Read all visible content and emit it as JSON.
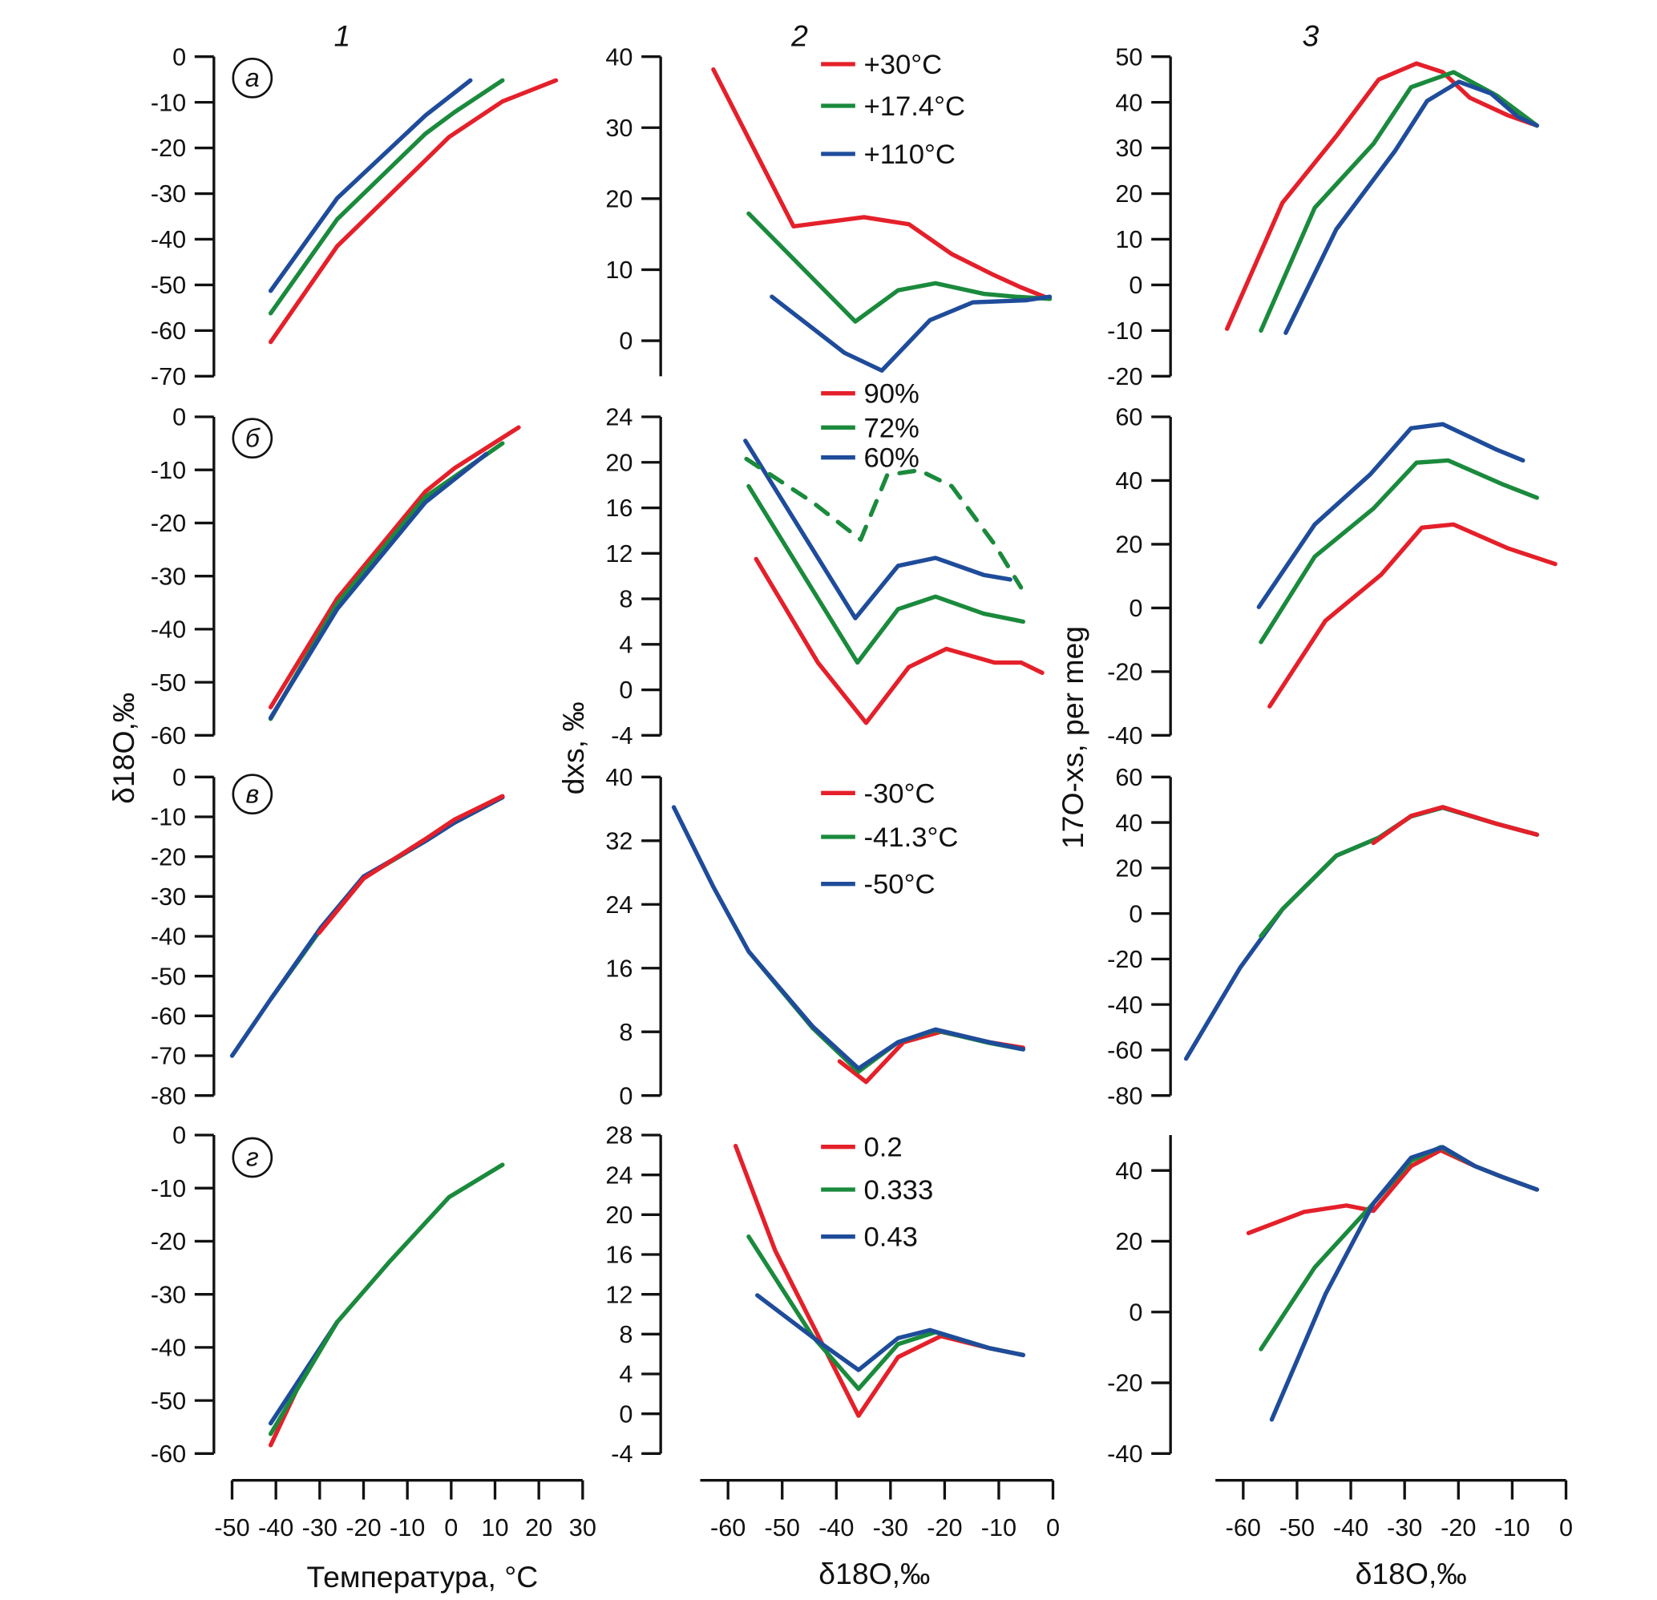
{
  "colors": {
    "red": "#e4202a",
    "green": "#1a8a3c",
    "blue": "#1f4c9a"
  },
  "headers": [
    "1",
    "2",
    "3"
  ],
  "panel_letters": [
    "а",
    "б",
    "в",
    "г"
  ],
  "labels": {
    "col1_y": "δ18O,‰",
    "col2_y": "dxs, ‰",
    "col3_y": "17O-xs, per meg",
    "col1_x": "Температура, °C",
    "col2_x": "δ18O,‰",
    "col3_x": "δ18O,‰"
  },
  "chart_data": [
    {
      "type": "line",
      "row": "а",
      "col": 1,
      "ylim": [
        -70,
        0
      ],
      "yticks": [
        0,
        -10,
        -20,
        -30,
        -40,
        -50,
        -60,
        -70
      ],
      "series": [
        {
          "color": "#e4202a",
          "x": [
            -41.2,
            -26,
            -5.9,
            -0.5,
            11.7,
            23.9
          ],
          "y": [
            -62.5,
            -41.5,
            -22.7,
            -17.6,
            -9.8,
            -5.2
          ]
        },
        {
          "color": "#1a8a3c",
          "x": [
            -41.2,
            -26,
            -5.9,
            0.7,
            11.7
          ],
          "y": [
            -56.2,
            -35.6,
            -16.9,
            -12.2,
            -5.2
          ]
        },
        {
          "color": "#1f4c9a",
          "x": [
            -41.2,
            -26,
            -5.9,
            4.4
          ],
          "y": [
            -51.3,
            -31,
            -12.9,
            -5.2
          ]
        }
      ]
    },
    {
      "type": "line",
      "row": "а",
      "col": 2,
      "ylim": [
        -5,
        40
      ],
      "yticks": [
        40,
        30,
        20,
        10,
        0
      ],
      "series": [
        {
          "name": "+30°C",
          "color": "#e4202a",
          "x": [
            -62.7,
            -47.9,
            -34.9,
            -26.6,
            -18.7,
            -10.8,
            -5.9,
            -0.6
          ],
          "y": [
            38.2,
            16.1,
            17.4,
            16.4,
            12.2,
            9.2,
            7.5,
            5.9
          ]
        },
        {
          "name": "+17.4°C",
          "color": "#1a8a3c",
          "x": [
            -56.2,
            -36.5,
            -28.6,
            -21.7,
            -12.8,
            -6.9,
            -0.6
          ],
          "y": [
            17.9,
            2.7,
            7.1,
            8.1,
            6.6,
            6.2,
            5.9
          ]
        },
        {
          "name": "+110°C",
          "color": "#1f4c9a",
          "x": [
            -51.9,
            -38.5,
            -31.6,
            -22.7,
            -14.8,
            -4.9,
            -0.6
          ],
          "y": [
            6.2,
            -1.7,
            -4.2,
            2.9,
            5.4,
            5.7,
            6.2
          ]
        }
      ]
    },
    {
      "type": "line",
      "row": "а",
      "col": 3,
      "ylim": [
        -20,
        50
      ],
      "yticks": [
        50,
        40,
        30,
        20,
        10,
        0,
        -10,
        -20
      ],
      "series": [
        {
          "color": "#e4202a",
          "x": [
            -63,
            -52.7,
            -42.7,
            -34.8,
            -27.8,
            -22.9,
            -17.9,
            -10.9,
            -5.4
          ],
          "y": [
            -9.6,
            18,
            32.6,
            45,
            48.5,
            46.6,
            41,
            37.2,
            34.9
          ]
        },
        {
          "color": "#1a8a3c",
          "x": [
            -56.7,
            -46.7,
            -35.8,
            -28.8,
            -20.9,
            -12.9,
            -5.4
          ],
          "y": [
            -10,
            16.9,
            30.9,
            43.3,
            46.6,
            41.5,
            34.9
          ]
        },
        {
          "color": "#1f4c9a",
          "x": [
            -52.1,
            -42.7,
            -31.8,
            -25.8,
            -19.9,
            -13.9,
            -8.9,
            -5.4
          ],
          "y": [
            -10.5,
            12.2,
            29.3,
            40.3,
            44.5,
            41.9,
            36.8,
            34.9
          ]
        }
      ]
    },
    {
      "type": "line",
      "row": "б",
      "col": 1,
      "ylim": [
        -60,
        0
      ],
      "yticks": [
        0,
        -10,
        -20,
        -30,
        -40,
        -50,
        -60
      ],
      "series": [
        {
          "color": "#e4202a",
          "x": [
            -41.2,
            -26,
            -5.9,
            0.7,
            15.4
          ],
          "y": [
            -54.7,
            -34.2,
            -14.1,
            -9.7,
            -2
          ]
        },
        {
          "color": "#1a8a3c",
          "x": [
            -41.2,
            -26,
            -5.9,
            11.7
          ],
          "y": [
            -56.9,
            -35.2,
            -15.1,
            -5
          ]
        },
        {
          "color": "#1f4c9a",
          "x": [
            -41.2,
            -26,
            -5.9,
            8
          ],
          "y": [
            -56.7,
            -36.2,
            -16.1,
            -7
          ]
        }
      ]
    },
    {
      "type": "line",
      "row": "б",
      "col": 2,
      "ylim": [
        -4,
        24
      ],
      "yticks": [
        24,
        20,
        16,
        12,
        8,
        4,
        0,
        -4
      ],
      "series": [
        {
          "name": "90%",
          "color": "#e4202a",
          "x": [
            -54.8,
            -43.4,
            -34.5,
            -26.6,
            -19.7,
            -10.8,
            -5.9,
            -2
          ],
          "y": [
            11.5,
            2.4,
            -2.9,
            2,
            3.6,
            2.4,
            2.4,
            1.5
          ]
        },
        {
          "name": "72%",
          "color": "#1a8a3c",
          "x": [
            -56.2,
            -36.1,
            -28.6,
            -21.7,
            -12.8,
            -5.5
          ],
          "y": [
            17.9,
            2.4,
            7.1,
            8.2,
            6.7,
            6
          ]
        },
        {
          "name": "60%",
          "color": "#1f4c9a",
          "x": [
            -56.8,
            -36.5,
            -28.6,
            -21.7,
            -12.8,
            -7.9
          ],
          "y": [
            21.9,
            6.3,
            10.9,
            11.6,
            10.1,
            9.7
          ]
        },
        {
          "color": "#1a8a3c",
          "dashed": true,
          "x": [
            -56.6,
            -44.4,
            -35.5,
            -30.6,
            -24.7,
            -18.7,
            -10.8,
            -5.9
          ],
          "y": [
            20.3,
            16.5,
            13.2,
            18.9,
            19.3,
            17.9,
            12.8,
            9
          ]
        }
      ]
    },
    {
      "type": "line",
      "row": "б",
      "col": 3,
      "ylim": [
        -40,
        60
      ],
      "yticks": [
        60,
        40,
        20,
        0,
        -20,
        -40
      ],
      "series": [
        {
          "color": "#e4202a",
          "x": [
            -55.1,
            -44.7,
            -34.4,
            -26.8,
            -20.9,
            -10.9,
            -2
          ],
          "y": [
            -30.9,
            -4,
            10.4,
            25.2,
            26.2,
            18.8,
            13.8
          ]
        },
        {
          "color": "#1a8a3c",
          "x": [
            -56.7,
            -46.7,
            -35.8,
            -27.8,
            -21.9,
            -11.9,
            -5.4
          ],
          "y": [
            -10.7,
            16.1,
            31.2,
            45.6,
            46.3,
            38.9,
            34.6
          ]
        },
        {
          "color": "#1f4c9a",
          "x": [
            -57.1,
            -46.7,
            -36.4,
            -28.8,
            -22.9,
            -12.9,
            -8
          ],
          "y": [
            0.3,
            26.2,
            41.9,
            56.4,
            57.7,
            49.7,
            46.3
          ]
        }
      ]
    },
    {
      "type": "line",
      "row": "в",
      "col": 1,
      "ylim": [
        -80,
        0
      ],
      "yticks": [
        0,
        -10,
        -20,
        -30,
        -40,
        -50,
        -60,
        -70,
        -80
      ],
      "series": [
        {
          "color": "#1a8a3c",
          "x": [
            -41.2,
            -29.8,
            -20,
            -5.9,
            0.7,
            11.7
          ],
          "y": [
            -55.8,
            -38.4,
            -25.3,
            -16.1,
            -11.5,
            -5.1
          ]
        },
        {
          "color": "#1f4c9a",
          "x": [
            -50,
            -41.2,
            -29.8,
            -20,
            -5.9,
            0.7,
            11.7
          ],
          "y": [
            -70,
            -55.8,
            -37.9,
            -25,
            -16.1,
            -11.5,
            -5.1
          ]
        },
        {
          "color": "#e4202a",
          "x": [
            -30.2,
            -20,
            -5.9,
            0.7,
            11.7
          ],
          "y": [
            -39.2,
            -25.5,
            -15.6,
            -10.7,
            -4.8
          ]
        }
      ]
    },
    {
      "type": "line",
      "row": "в",
      "col": 2,
      "ylim": [
        0,
        40
      ],
      "yticks": [
        40,
        32,
        24,
        16,
        8,
        0
      ],
      "series": [
        {
          "name": "-30°C",
          "color": "#e4202a",
          "x": [
            -39.4,
            -34.5,
            -27.6,
            -20.7,
            -11.8,
            -5.5
          ],
          "y": [
            4.3,
            1.7,
            6.7,
            8,
            6.7,
            6
          ]
        },
        {
          "name": "-41.3°C",
          "color": "#1a8a3c",
          "x": [
            -56.2,
            -44.4,
            -35.9,
            -28.6,
            -21.7,
            -11.8,
            -5.5
          ],
          "y": [
            18.1,
            8.5,
            3,
            6.7,
            8.2,
            6.6,
            5.8
          ]
        },
        {
          "name": "-50°C",
          "color": "#1f4c9a",
          "x": [
            -70,
            -62.7,
            -56.2,
            -44.4,
            -35.9,
            -28.6,
            -21.7,
            -11.8,
            -5.5
          ],
          "y": [
            36.2,
            26.2,
            18.1,
            8.7,
            3.4,
            6.7,
            8.3,
            6.7,
            5.8
          ]
        }
      ]
    },
    {
      "type": "line",
      "row": "в",
      "col": 3,
      "ylim": [
        -80,
        60
      ],
      "yticks": [
        60,
        40,
        20,
        0,
        -20,
        -40,
        -60,
        -80
      ],
      "series": [
        {
          "color": "#1f4c9a",
          "x": [
            -70.6,
            -60.6,
            -52.7,
            -42.7,
            -34.8,
            -28.8,
            -22.9,
            -12.9,
            -5.4
          ],
          "y": [
            -63.8,
            -23.9,
            1.9,
            25.4,
            33.3,
            42.7,
            46.5,
            39.4,
            34.7
          ]
        },
        {
          "color": "#1a8a3c",
          "x": [
            -56.7,
            -52.7,
            -42.7,
            -34.8,
            -28.8,
            -22.9,
            -12.9,
            -5.4
          ],
          "y": [
            -9.9,
            1.9,
            25.4,
            33.3,
            42.7,
            46.5,
            39.4,
            34.7
          ]
        },
        {
          "color": "#e4202a",
          "x": [
            -35.8,
            -28.8,
            -22.9,
            -12.9,
            -5.4
          ],
          "y": [
            31,
            42.9,
            46.8,
            39.4,
            34.7
          ]
        }
      ]
    },
    {
      "type": "line",
      "row": "г",
      "col": 1,
      "ylim": [
        -60,
        0
      ],
      "yticks": [
        0,
        -10,
        -20,
        -30,
        -40,
        -50,
        -60
      ],
      "xlabel": "Температура, °C",
      "xlim": [
        -50,
        30
      ],
      "xticks": [
        -50,
        -40,
        -30,
        -20,
        -10,
        0,
        10,
        20,
        30
      ],
      "series": [
        {
          "color": "#e4202a",
          "x": [
            -41.2,
            -34.6,
            -26
          ],
          "y": [
            -58.4,
            -46.9,
            -35.2
          ]
        },
        {
          "color": "#1f4c9a",
          "x": [
            -41.2,
            -26
          ],
          "y": [
            -54.3,
            -35.2
          ]
        },
        {
          "color": "#1a8a3c",
          "x": [
            -41.2,
            -26,
            -13.9,
            -0.5,
            11.7
          ],
          "y": [
            -56.3,
            -35.2,
            -23.7,
            -11.7,
            -5.6
          ]
        }
      ]
    },
    {
      "type": "line",
      "row": "г",
      "col": 2,
      "ylim": [
        -4,
        28
      ],
      "yticks": [
        28,
        24,
        20,
        16,
        12,
        8,
        4,
        0,
        -4
      ],
      "xlabel": "δ18O,‰",
      "xlim": [
        -65,
        0
      ],
      "xticks": [
        -60,
        -50,
        -40,
        -30,
        -20,
        -10,
        0
      ],
      "series": [
        {
          "name": "0.2",
          "color": "#e4202a",
          "x": [
            -58.6,
            -51.3,
            -42.4,
            -35.9,
            -28.6,
            -20.7,
            -11.8,
            -5.5
          ],
          "y": [
            26.9,
            16.4,
            6.8,
            -0.2,
            5.7,
            7.8,
            6.6,
            5.9
          ]
        },
        {
          "name": "0.333",
          "color": "#1a8a3c",
          "x": [
            -56.2,
            -44.4,
            -35.9,
            -28.6,
            -21.7,
            -11.8,
            -5.5
          ],
          "y": [
            17.8,
            7.8,
            2.5,
            7,
            8.2,
            6.6,
            5.9
          ]
        },
        {
          "name": "0.43",
          "color": "#1f4c9a",
          "x": [
            -54.6,
            -43.4,
            -35.9,
            -28.6,
            -22.7,
            -11.8,
            -5.5
          ],
          "y": [
            11.9,
            7.3,
            4.4,
            7.6,
            8.4,
            6.6,
            5.9
          ]
        }
      ]
    },
    {
      "type": "line",
      "row": "г",
      "col": 3,
      "ylim": [
        -40,
        50
      ],
      "yticks": [
        40,
        20,
        0,
        -20,
        -40
      ],
      "xlabel": "δ18O,‰",
      "xlim": [
        -65,
        0
      ],
      "xticks": [
        -60,
        -50,
        -40,
        -30,
        -20,
        -10,
        0
      ],
      "series": [
        {
          "color": "#e4202a",
          "x": [
            -59,
            -48.7,
            -40.8,
            -35.8,
            -28.8,
            -23.3,
            -16.9,
            -11.9,
            -5.4
          ],
          "y": [
            22.3,
            28.3,
            30.1,
            28.6,
            41.2,
            45.7,
            41.2,
            38.2,
            34.6
          ]
        },
        {
          "color": "#1a8a3c",
          "x": [
            -56.7,
            -46.7,
            -35.8,
            -28.8,
            -23.3,
            -16.9,
            -11.9,
            -5.4
          ],
          "y": [
            -10.5,
            12.6,
            30.7,
            42.7,
            46.6,
            41.2,
            38.2,
            34.6
          ]
        },
        {
          "color": "#1f4c9a",
          "x": [
            -54.7,
            -44.7,
            -35.8,
            -28.8,
            -22.9,
            -16.9,
            -11.9,
            -5.4
          ],
          "y": [
            -30.4,
            5.1,
            30.7,
            43.6,
            46.6,
            41.2,
            38.2,
            34.6
          ]
        }
      ]
    }
  ]
}
